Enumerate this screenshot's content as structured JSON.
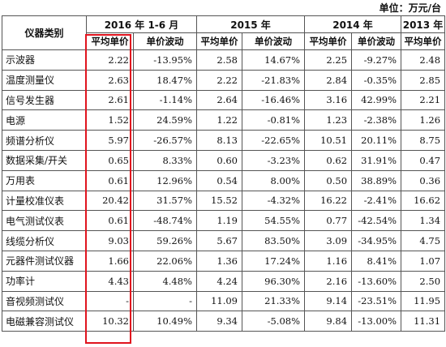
{
  "unit_label": "单位：万元/台",
  "header": {
    "category_label": "仪器类别",
    "periods": [
      "2016 年 1-6 月",
      "2015 年",
      "2014 年",
      "2013 年"
    ],
    "sub_headers": [
      "平均单价",
      "单价波动",
      "平均单价",
      "单价波动",
      "平均单价",
      "单价波动",
      "平均单价"
    ]
  },
  "rows": [
    {
      "name": "示波器",
      "values": [
        "2.22",
        "-13.95%",
        "2.58",
        "14.67%",
        "2.25",
        "-9.27%",
        "2.48"
      ]
    },
    {
      "name": "温度测量仪",
      "values": [
        "2.63",
        "18.47%",
        "2.22",
        "-21.83%",
        "2.84",
        "-0.35%",
        "2.85"
      ]
    },
    {
      "name": "信号发生器",
      "values": [
        "2.61",
        "-1.14%",
        "2.64",
        "-16.46%",
        "3.16",
        "42.99%",
        "2.21"
      ]
    },
    {
      "name": "电源",
      "values": [
        "1.52",
        "24.59%",
        "1.22",
        "-0.81%",
        "1.23",
        "-2.38%",
        "1.26"
      ]
    },
    {
      "name": "频谱分析仪",
      "values": [
        "5.97",
        "-26.57%",
        "8.13",
        "-22.65%",
        "10.51",
        "20.11%",
        "8.75"
      ]
    },
    {
      "name": "数据采集/开关",
      "values": [
        "0.65",
        "8.33%",
        "0.60",
        "-3.23%",
        "0.62",
        "31.91%",
        "0.47"
      ]
    },
    {
      "name": "万用表",
      "values": [
        "0.61",
        "12.96%",
        "0.54",
        "8.00%",
        "0.50",
        "38.89%",
        "0.36"
      ]
    },
    {
      "name": "计量校准仪表",
      "values": [
        "20.42",
        "31.57%",
        "15.52",
        "-4.32%",
        "16.22",
        "-2.41%",
        "16.62"
      ]
    },
    {
      "name": "电气测试仪表",
      "values": [
        "0.61",
        "-48.74%",
        "1.19",
        "54.55%",
        "0.77",
        "-42.54%",
        "1.34"
      ]
    },
    {
      "name": "线缆分析仪",
      "values": [
        "9.03",
        "59.26%",
        "5.67",
        "83.50%",
        "3.09",
        "-34.95%",
        "4.75"
      ]
    },
    {
      "name": "元器件测试仪器",
      "values": [
        "1.66",
        "22.06%",
        "1.36",
        "17.24%",
        "1.16",
        "8.41%",
        "1.07"
      ]
    },
    {
      "name": "功率计",
      "values": [
        "4.43",
        "4.48%",
        "4.24",
        "96.30%",
        "2.16",
        "-13.60%",
        "2.50"
      ]
    },
    {
      "name": "音视频测试仪",
      "values": [
        "-",
        "-",
        "11.09",
        "21.33%",
        "9.14",
        "-23.51%",
        "11.95"
      ]
    },
    {
      "name": "电磁兼容测试仪",
      "values": [
        "10.32",
        "10.49%",
        "9.34",
        "-5.08%",
        "9.84",
        "-13.00%",
        "11.31"
      ]
    }
  ],
  "highlight_color": "#e0141e"
}
